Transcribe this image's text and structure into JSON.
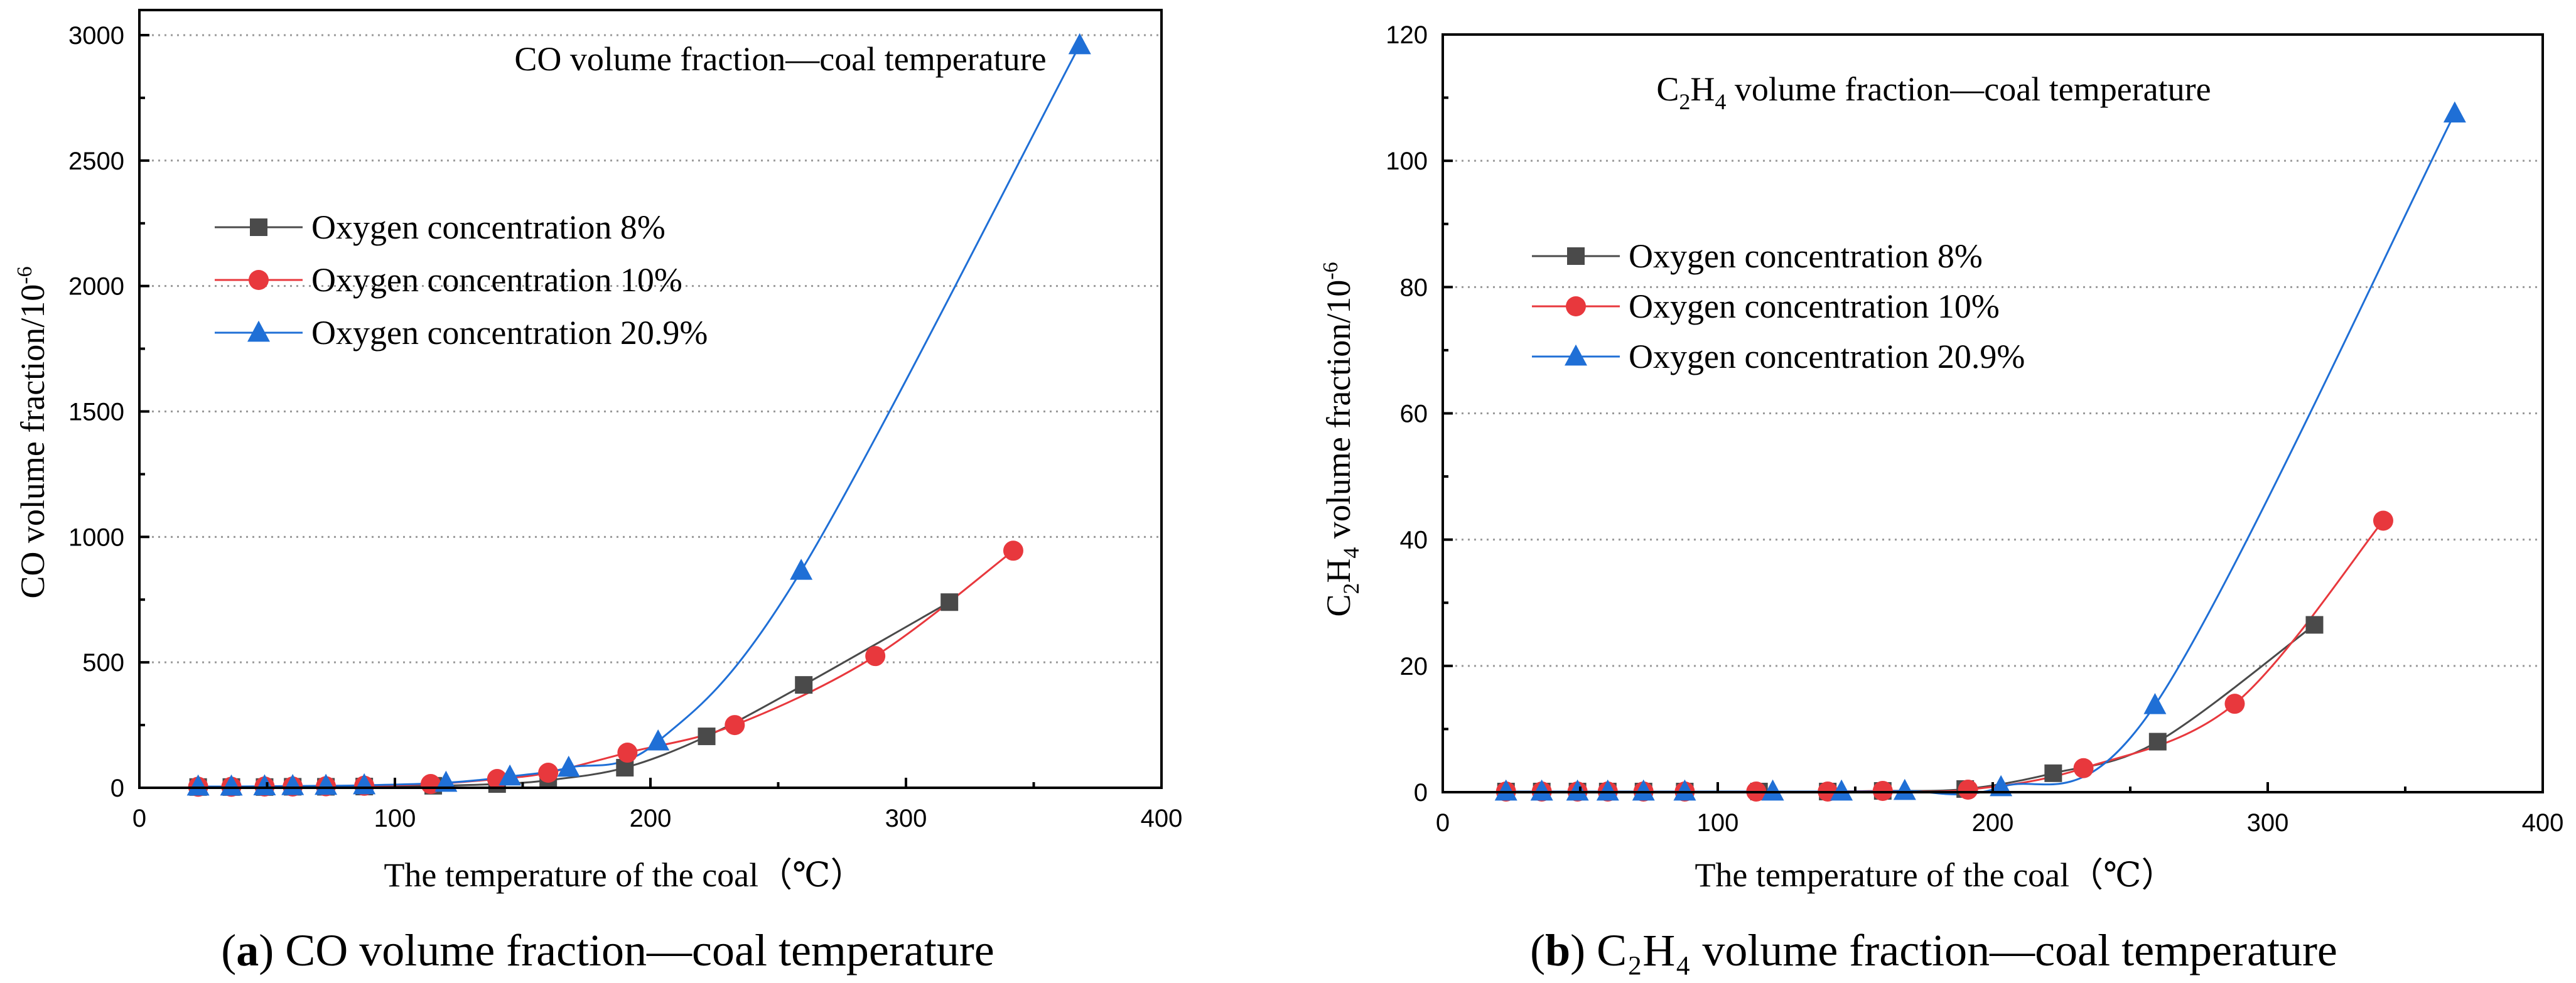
{
  "chart_data": [
    {
      "type": "line",
      "title": "CO volume fraction—coal temperature",
      "xlabel": "The temperature of the coal（℃）",
      "ylabel_parts": {
        "base": "CO volume fraction/10",
        "sup": "-6"
      },
      "xlim": [
        0,
        400
      ],
      "ylim": [
        0,
        3100
      ],
      "xticks": [
        0,
        100,
        200,
        300,
        400
      ],
      "yticks": [
        0,
        500,
        1000,
        1500,
        2000,
        2500,
        3000
      ],
      "grid": true,
      "legend_position": "upper-left",
      "caption": {
        "label": "a",
        "text": "CO volume fraction—coal temperature"
      },
      "series": [
        {
          "name": "Oxygen concentration 8%",
          "color": "#4a4a4a",
          "marker": "square",
          "x": [
            23,
            36,
            49,
            60,
            73,
            88,
            115,
            140,
            160,
            190,
            222,
            260,
            317
          ],
          "y": [
            3,
            3,
            3,
            4,
            4,
            5,
            8,
            15,
            30,
            80,
            205,
            410,
            740
          ]
        },
        {
          "name": "Oxygen concentration 10%",
          "color": "#e8383d",
          "marker": "circle",
          "x": [
            23,
            36,
            49,
            60,
            73,
            88,
            114,
            140,
            160,
            191,
            233,
            288,
            342
          ],
          "y": [
            4,
            4,
            5,
            5,
            6,
            8,
            15,
            35,
            60,
            140,
            250,
            525,
            945
          ]
        },
        {
          "name": "Oxygen concentration 20.9%",
          "color": "#1f6fd6",
          "marker": "triangle",
          "x": [
            23,
            36,
            49,
            60,
            73,
            88,
            120,
            145,
            168,
            203,
            259,
            368
          ],
          "y": [
            5,
            5,
            6,
            7,
            8,
            10,
            20,
            45,
            80,
            185,
            865,
            2960
          ]
        }
      ]
    },
    {
      "type": "line",
      "title_parts": {
        "a": "C",
        "s1": "2",
        "b": "H",
        "s2": "4",
        "c": " volume fraction—coal temperature"
      },
      "xlabel": "The temperature of the coal（℃）",
      "ylabel_parts": {
        "a": "C",
        "s1": "2",
        "b": "H",
        "s2": "4",
        "c": " volume fraction/10",
        "sup": "-6"
      },
      "xlim": [
        0,
        400
      ],
      "ylim": [
        0,
        120
      ],
      "xticks": [
        0,
        100,
        200,
        300,
        400
      ],
      "yticks": [
        0,
        20,
        40,
        60,
        80,
        100,
        120
      ],
      "grid": true,
      "legend_position": "upper-left",
      "caption": {
        "label": "b",
        "text": "C₂H₄ volume fraction—coal temperature"
      },
      "series": [
        {
          "name": "Oxygen concentration 8%",
          "color": "#4a4a4a",
          "marker": "square",
          "x": [
            23,
            36,
            49,
            60,
            73,
            88,
            115,
            140,
            160,
            190,
            222,
            260,
            317
          ],
          "y": [
            0.1,
            0.1,
            0.1,
            0.1,
            0.1,
            0.1,
            0.1,
            0.1,
            0.2,
            0.5,
            3,
            8,
            26.5
          ]
        },
        {
          "name": "Oxygen concentration 10%",
          "color": "#e8383d",
          "marker": "circle",
          "x": [
            23,
            36,
            49,
            60,
            73,
            88,
            114,
            140,
            160,
            191,
            233,
            288,
            342
          ],
          "y": [
            0.1,
            0.1,
            0.1,
            0.1,
            0.1,
            0.1,
            0.1,
            0.1,
            0.2,
            0.4,
            3.8,
            14,
            43
          ]
        },
        {
          "name": "Oxygen concentration 20.9%",
          "color": "#1f6fd6",
          "marker": "triangle",
          "x": [
            23,
            36,
            49,
            60,
            73,
            88,
            120,
            145,
            168,
            203,
            259,
            368
          ],
          "y": [
            0.1,
            0.1,
            0.1,
            0.1,
            0.1,
            0.1,
            0.1,
            0.1,
            0.2,
            0.8,
            13.8,
            107.5
          ]
        }
      ]
    }
  ]
}
